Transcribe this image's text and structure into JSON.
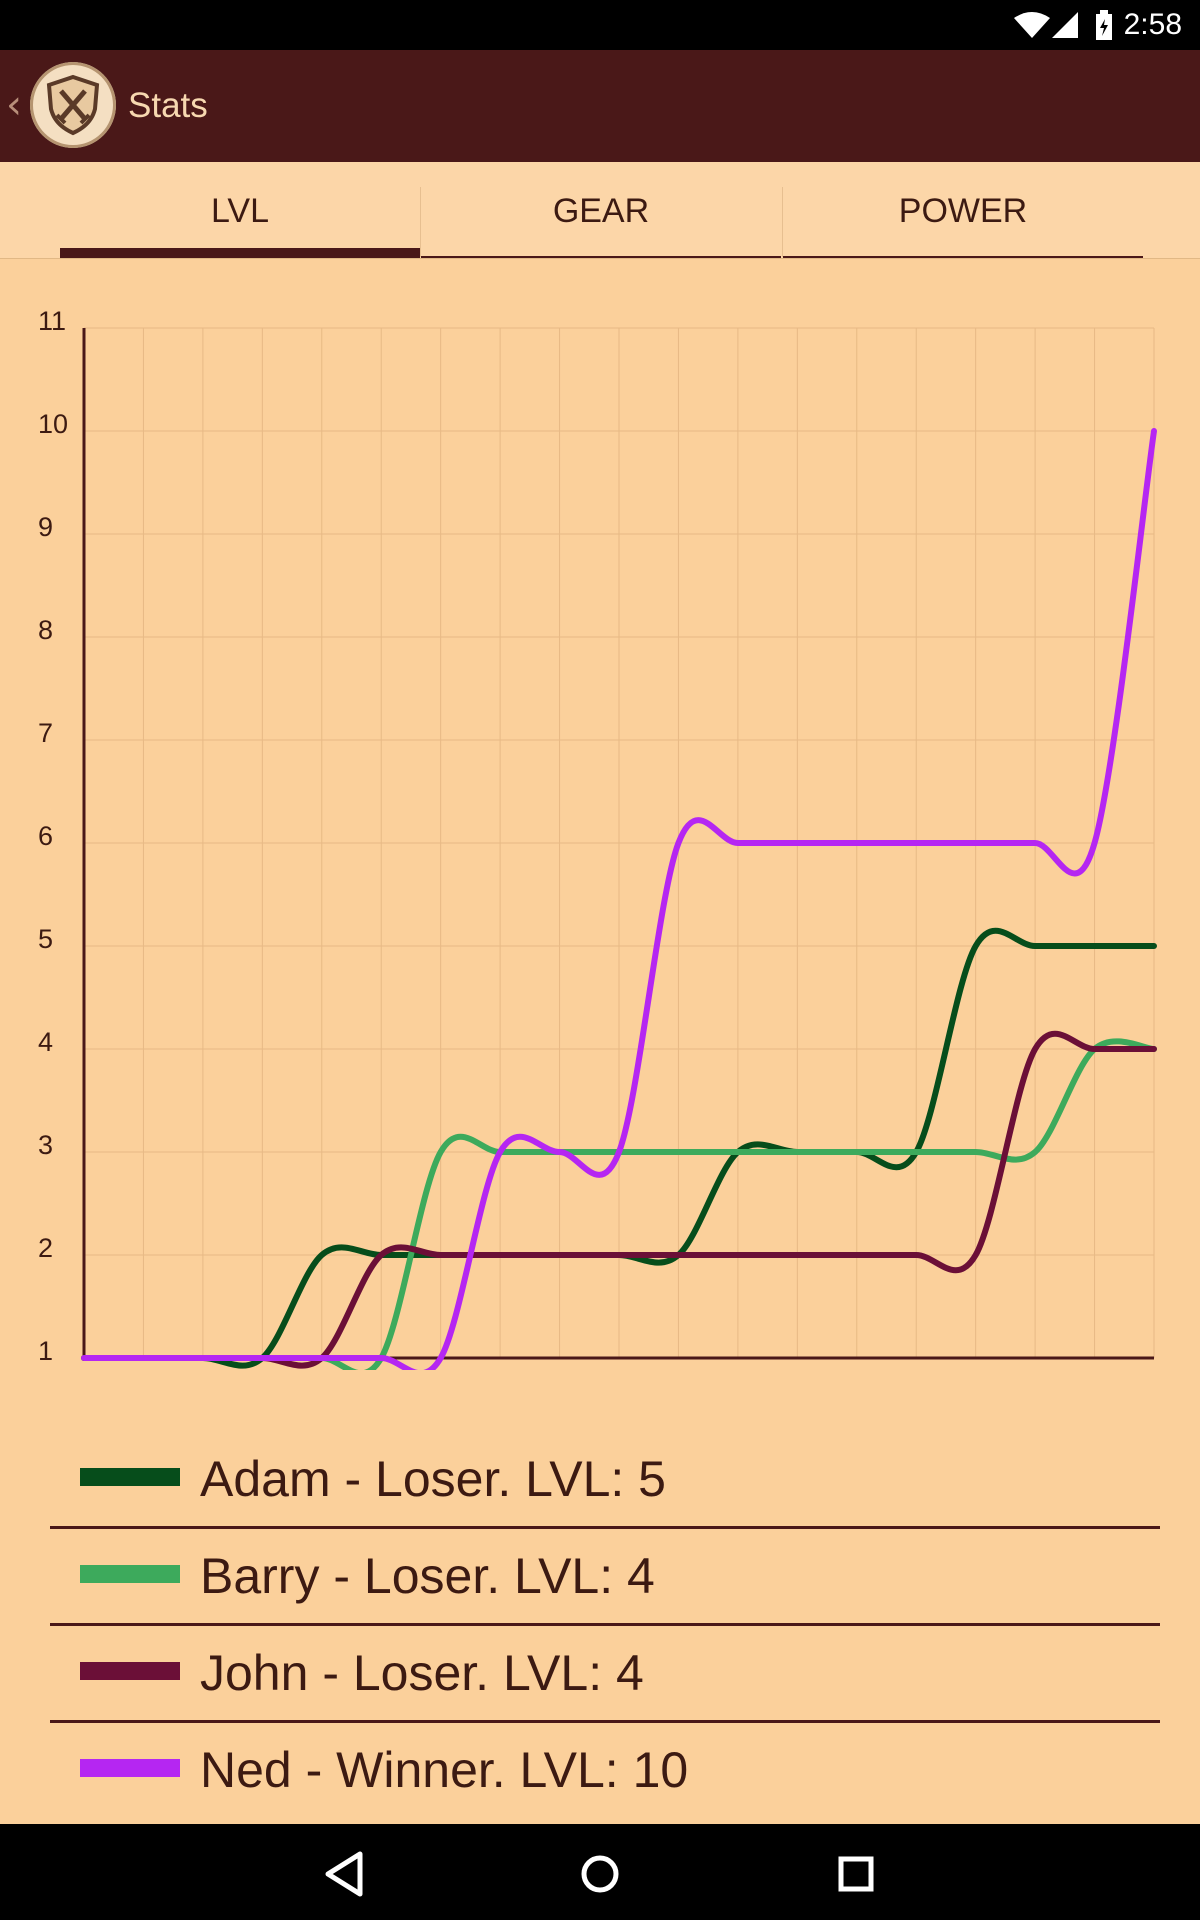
{
  "status_bar": {
    "time": "2:58"
  },
  "app_bar": {
    "back_glyph": "‹",
    "title": "Stats",
    "logo": "shield-swords-icon"
  },
  "tabs": [
    {
      "label": "LVL",
      "active": true
    },
    {
      "label": "GEAR",
      "active": false
    },
    {
      "label": "POWER",
      "active": false
    }
  ],
  "chart_data": {
    "type": "line",
    "ylim": [
      1,
      11
    ],
    "y_ticks": [
      "1",
      "2",
      "3",
      "4",
      "5",
      "6",
      "7",
      "8",
      "9",
      "10",
      "11"
    ],
    "x": [
      0,
      1,
      2,
      3,
      4,
      5,
      6,
      7,
      8,
      9,
      10,
      11,
      12,
      13,
      14,
      15,
      16,
      17,
      18
    ],
    "grid": true,
    "series": [
      {
        "name": "Adam - Loser. LVL: 5",
        "color": "#064d1b",
        "values": [
          1,
          1,
          1,
          1,
          2,
          2,
          2,
          2,
          2,
          2,
          2,
          3,
          3,
          3,
          3,
          5,
          5,
          5,
          5
        ]
      },
      {
        "name": "Barry - Loser. LVL: 4",
        "color": "#3daa5c",
        "values": [
          1,
          1,
          1,
          1,
          1,
          1,
          3,
          3,
          3,
          3,
          3,
          3,
          3,
          3,
          3,
          3,
          3,
          4,
          4
        ]
      },
      {
        "name": "John - Loser. LVL: 4",
        "color": "#6b0f37",
        "values": [
          1,
          1,
          1,
          1,
          1,
          2,
          2,
          2,
          2,
          2,
          2,
          2,
          2,
          2,
          2,
          2,
          4,
          4,
          4
        ]
      },
      {
        "name": "Ned - Winner. LVL: 10",
        "color": "#b526f2",
        "values": [
          1,
          1,
          1,
          1,
          1,
          1,
          1,
          3,
          3,
          3,
          6,
          6,
          6,
          6,
          6,
          6,
          6,
          6,
          10
        ]
      }
    ]
  },
  "legend": [
    {
      "label": "Adam - Loser. LVL: 5",
      "color": "#064d1b"
    },
    {
      "label": "Barry - Loser. LVL: 4",
      "color": "#3daa5c"
    },
    {
      "label": "John - Loser. LVL: 4",
      "color": "#6b0f37"
    },
    {
      "label": "Ned - Winner. LVL: 10",
      "color": "#b526f2"
    }
  ],
  "nav_bar": {
    "back": "back-triangle-icon",
    "home": "home-circle-icon",
    "recents": "recents-square-icon"
  }
}
